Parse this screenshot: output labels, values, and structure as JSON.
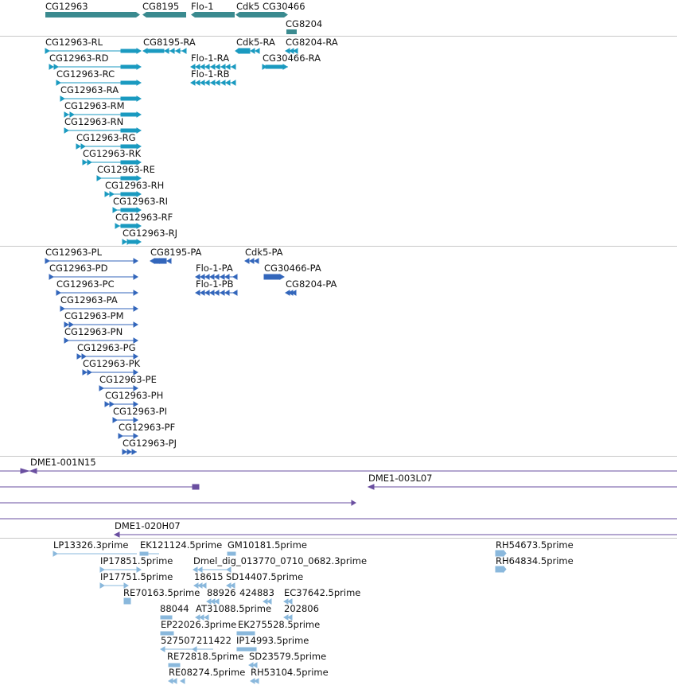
{
  "colors": {
    "genes": "#3a8a8f",
    "rna": "#1a9ac0",
    "protein": "#3366bb",
    "clones": "#6a4fa0",
    "ests": "#8ab8dc"
  },
  "tracks": {
    "genes": {
      "labels": [
        "CG12963",
        "CG8195",
        "Flo-1",
        "Cdk5",
        "CG30466",
        "CG8204"
      ]
    },
    "rna": {
      "labels": [
        "CG12963-RL",
        "CG8195-RA",
        "Cdk5-RA",
        "CG8204-RA",
        "CG12963-RD",
        "Flo-1-RA",
        "CG30466-RA",
        "CG12963-RC",
        "Flo-1-RB",
        "CG12963-RA",
        "CG12963-RM",
        "CG12963-RN",
        "CG12963-RG",
        "CG12963-RK",
        "CG12963-RE",
        "CG12963-RH",
        "CG12963-RI",
        "CG12963-RF",
        "CG12963-RJ"
      ]
    },
    "protein": {
      "labels": [
        "CG12963-PL",
        "CG8195-PA",
        "Cdk5-PA",
        "CG12963-PD",
        "Flo-1-PA",
        "CG30466-PA",
        "CG12963-PC",
        "Flo-1-PB",
        "CG8204-PA",
        "CG12963-PA",
        "CG12963-PM",
        "CG12963-PN",
        "CG12963-PG",
        "CG12963-PK",
        "CG12963-PE",
        "CG12963-PH",
        "CG12963-PI",
        "CG12963-PF",
        "CG12963-PJ"
      ]
    },
    "clones": {
      "labels": [
        "DME1-001N15",
        "DME1-003L07",
        "DME1-020H07"
      ]
    },
    "ests": {
      "labels": [
        "LP13326.3prime",
        "EK121124.5prime",
        "GM10181.5prime",
        "RH54673.5prime",
        "IP17851.5prime",
        "Dmel_dig_013770_0710_0682.3prime",
        "RH64834.5prime",
        "IP17751.5prime",
        "18615",
        "SD14407.5prime",
        "RE70163.5prime",
        "88926",
        "424883",
        "EC37642.5prime",
        "88044",
        "AT31088.5prime",
        "202806",
        "EP22026.3prime",
        "EK275528.5prime",
        "527507",
        "211422",
        "IP14993.5prime",
        "RE72818.5prime",
        "SD23579.5prime",
        "RE08274.5prime",
        "RH53104.5prime"
      ]
    }
  }
}
